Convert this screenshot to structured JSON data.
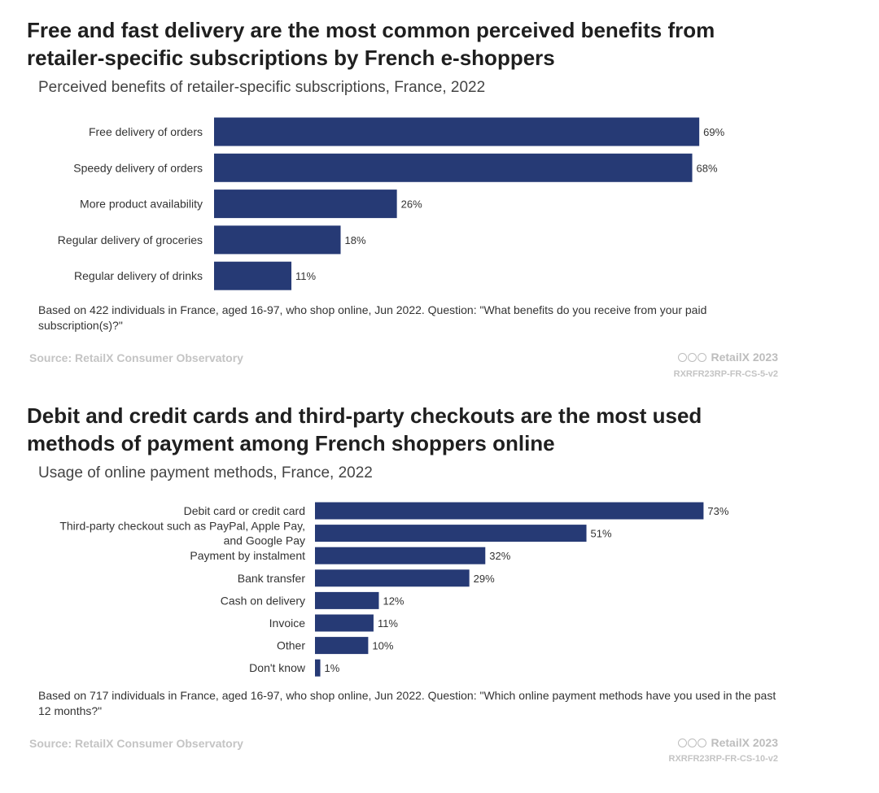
{
  "colors": {
    "bar": "#263a75",
    "source_text": "#c4c4c4"
  },
  "chart_data": [
    {
      "type": "bar",
      "orientation": "horizontal",
      "title": "Free and fast delivery are the most common perceived benefits from retailer-specific subscriptions by French e-shoppers",
      "subtitle": "Perceived benefits of retailer-specific subscriptions, France, 2022",
      "categories": [
        "Free delivery of orders",
        "Speedy delivery of orders",
        "More product availability",
        "Regular delivery of groceries",
        "Regular delivery of drinks"
      ],
      "values": [
        69,
        68,
        26,
        18,
        11
      ],
      "value_labels": [
        "69%",
        "68%",
        "26%",
        "18%",
        "11%"
      ],
      "unit": "%",
      "xlim": [
        0,
        100
      ],
      "note": "Based on 422 individuals in France, aged 16-97, who shop online, Jun 2022. Question: \"What benefits do you receive from your paid subscription(s)?\"",
      "source": "Source: RetailX Consumer Observatory",
      "brand": "RetailX 2023",
      "code": "RXRFR23RP-FR-CS-5-v2"
    },
    {
      "type": "bar",
      "orientation": "horizontal",
      "title": "Debit and credit cards and third-party checkouts are the most used methods of payment among French shoppers online",
      "subtitle": "Usage of online payment methods, France, 2022",
      "categories": [
        "Debit card or credit card",
        "Third-party checkout such as PayPal, Apple Pay, and Google Pay",
        "Payment by instalment",
        "Bank transfer",
        "Cash on delivery",
        "Invoice",
        "Other",
        "Don't know"
      ],
      "category_lines": [
        [
          "Debit card or credit card"
        ],
        [
          "Third-party checkout such as PayPal, Apple Pay,",
          "and Google Pay"
        ],
        [
          "Payment by instalment"
        ],
        [
          "Bank transfer"
        ],
        [
          "Cash on delivery"
        ],
        [
          "Invoice"
        ],
        [
          "Other"
        ],
        [
          "Don't know"
        ]
      ],
      "values": [
        73,
        51,
        32,
        29,
        12,
        11,
        10,
        1
      ],
      "value_labels": [
        "73%",
        "51%",
        "32%",
        "29%",
        "12%",
        "11%",
        "10%",
        "1%"
      ],
      "unit": "%",
      "xlim": [
        0,
        100
      ],
      "note": "Based on 717 individuals in France, aged 16-97, who shop online, Jun 2022. Question: \"Which online payment methods have you used in the past 12 months?\"",
      "source": "Source: RetailX Consumer Observatory",
      "brand": "RetailX 2023",
      "code": "RXRFR23RP-FR-CS-10-v2"
    }
  ]
}
